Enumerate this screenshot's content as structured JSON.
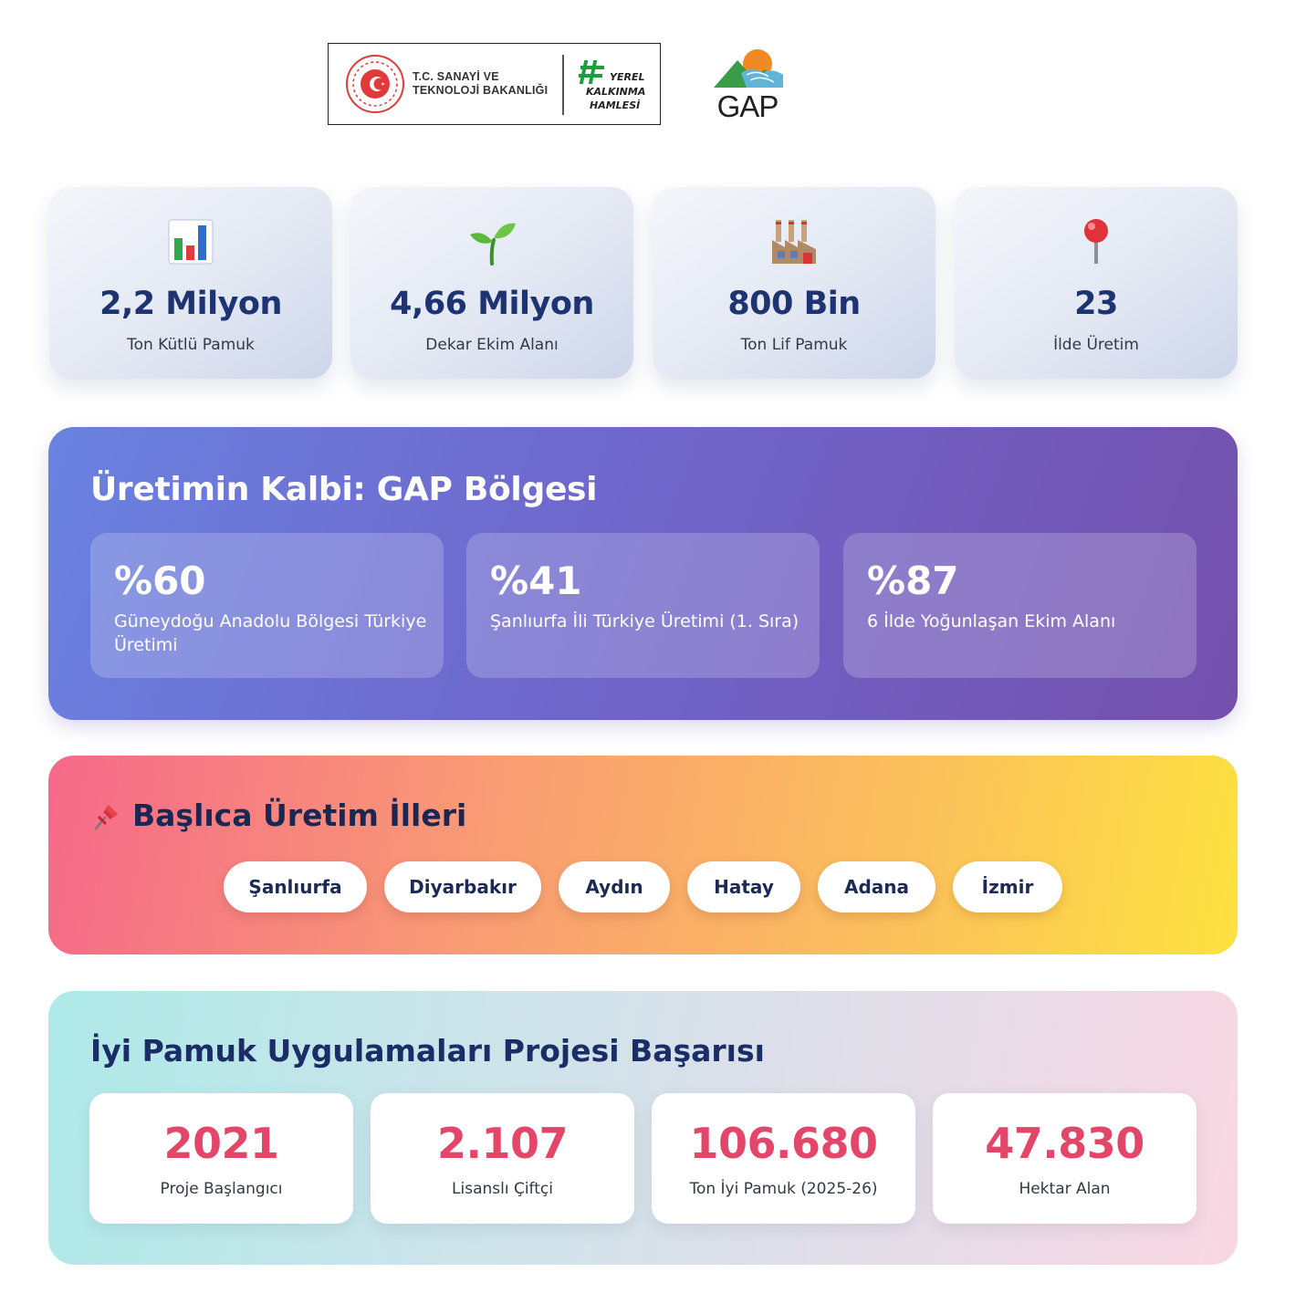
{
  "header": {
    "ministry_line1": "T.C. SANAYİ VE",
    "ministry_line2": "TEKNOLOJİ BAKANLIĞI",
    "hamle_line1": "YEREL",
    "hamle_line2": "KALKINMA",
    "hamle_line3": "HAMLESİ",
    "gap_logo_text": "GAP"
  },
  "stats": [
    {
      "icon": "bar-chart-icon",
      "value": "2,2 Milyon",
      "label": "Ton Kütlü Pamuk"
    },
    {
      "icon": "seedling-icon",
      "value": "4,66 Milyon",
      "label": "Dekar Ekim Alanı"
    },
    {
      "icon": "factory-icon",
      "value": "800 Bin",
      "label": "Ton Lif Pamuk"
    },
    {
      "icon": "map-pin-icon",
      "value": "23",
      "label": "İlde Üretim"
    }
  ],
  "gap_region": {
    "title": "Üretimin Kalbi: GAP Bölgesi",
    "cards": [
      {
        "value": "%60",
        "label": "Güneydoğu Anadolu Bölgesi Türkiye Üretimi"
      },
      {
        "value": "%41",
        "label": "Şanlıurfa İli Türkiye Üretimi (1. Sıra)"
      },
      {
        "value": "%87",
        "label": "6 İlde Yoğunlaşan Ekim Alanı"
      }
    ]
  },
  "provinces": {
    "icon": "pushpin-icon",
    "title": "Başlıca Üretim İlleri",
    "items": [
      "Şanlıurfa",
      "Diyarbakır",
      "Aydın",
      "Hatay",
      "Adana",
      "İzmir"
    ]
  },
  "project": {
    "title": "İyi Pamuk Uygulamaları Projesi Başarısı",
    "cards": [
      {
        "value": "2021",
        "label": "Proje Başlangıcı"
      },
      {
        "value": "2.107",
        "label": "Lisanslı Çiftçi"
      },
      {
        "value": "106.680",
        "label": "Ton İyi Pamuk (2025-26)"
      },
      {
        "value": "47.830",
        "label": "Hektar Alan"
      }
    ]
  },
  "colors": {
    "stat_value": "#1d3372",
    "project_value": "#e4466a",
    "gap_gradient_start": "#6a82e0",
    "gap_gradient_end": "#7450ad"
  }
}
